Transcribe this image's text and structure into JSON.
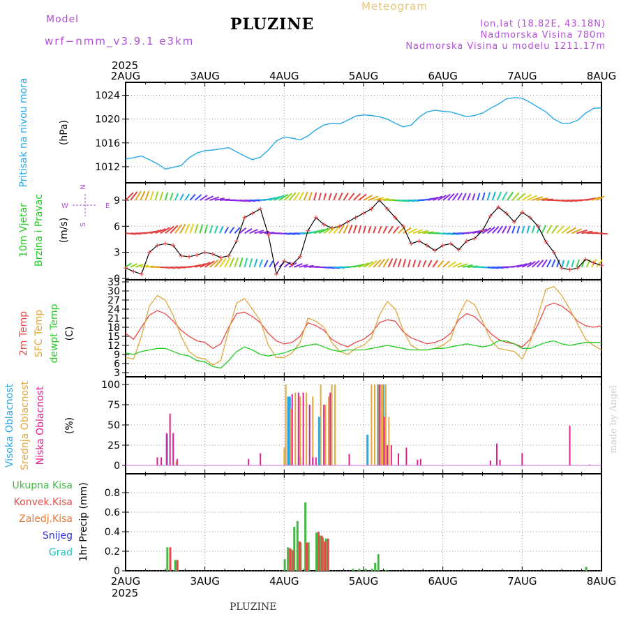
{
  "header": {
    "title": "PLUZINE",
    "meteogram": "Meteogram",
    "model_label": "Model",
    "model_name": "wrf−nmm_v3.9.1  e3km",
    "lonlat": "lon,lat (18.82E, 43.18N)",
    "elevation": "Nadmorska Visina 780m",
    "elevation_model": "Nadmorska Visina u modelu 1211.17m",
    "year_top": "2025",
    "year_bottom": "2025"
  },
  "footer": {
    "station": "PLUZINE",
    "credit": "made by Angel"
  },
  "colors": {
    "pressure": "#29a8e6",
    "wind_label": "#22cc22",
    "temp2m": "#e84a4a",
    "sfc": "#e0a840",
    "dewpt": "#22cc22",
    "high_cloud": "#29a8e6",
    "mid_cloud": "#e0a840",
    "low_cloud": "#e0208c",
    "total_precip": "#44b844",
    "convective": "#e84a4a",
    "frozen": "#e87830",
    "snow": "#3030d0",
    "graupel": "#20c0c0",
    "model_text": "#b050d8"
  },
  "chart_data": [
    {
      "type": "line",
      "panel": "pressure",
      "x_ticks": [
        "2AUG",
        "3AUG",
        "4AUG",
        "5AUG",
        "6AUG",
        "7AUG",
        "8AUG"
      ],
      "ylabel_series": "Pritisak na nivou mora",
      "ylabel_unit": "(hPa)",
      "ylim": [
        1010,
        1025
      ],
      "y_ticks": [
        1012,
        1016,
        1020,
        1024
      ],
      "grid": true,
      "x_days": [
        0,
        0.1,
        0.2,
        0.3,
        0.4,
        0.5,
        0.6,
        0.7,
        0.8,
        0.9,
        1.0,
        1.1,
        1.2,
        1.3,
        1.4,
        1.5,
        1.6,
        1.7,
        1.8,
        1.9,
        2.0,
        2.1,
        2.2,
        2.3,
        2.4,
        2.5,
        2.6,
        2.7,
        2.8,
        2.9,
        3.0,
        3.1,
        3.2,
        3.3,
        3.4,
        3.5,
        3.6,
        3.7,
        3.8,
        3.9,
        4.0,
        4.1,
        4.2,
        4.3,
        4.4,
        4.5,
        4.6,
        4.7,
        4.8,
        4.9,
        5.0,
        5.1,
        5.2,
        5.3,
        5.4,
        5.5,
        5.6,
        5.7,
        5.8,
        5.9,
        6.0
      ],
      "values": [
        1013.3,
        1013.5,
        1013.8,
        1013.2,
        1012.5,
        1011.6,
        1011.9,
        1012.2,
        1013.5,
        1014.3,
        1014.7,
        1014.8,
        1015.0,
        1015.2,
        1014.5,
        1013.8,
        1013.2,
        1013.6,
        1014.8,
        1016.3,
        1017.0,
        1016.8,
        1016.5,
        1017.2,
        1018.2,
        1019.0,
        1019.3,
        1019.2,
        1019.8,
        1020.5,
        1020.7,
        1020.6,
        1020.4,
        1020.0,
        1019.3,
        1018.7,
        1019.0,
        1020.3,
        1021.2,
        1021.5,
        1021.3,
        1021.2,
        1020.8,
        1020.4,
        1020.6,
        1021.0,
        1021.8,
        1022.5,
        1023.4,
        1023.6,
        1023.5,
        1022.8,
        1022.0,
        1021.2,
        1020.0,
        1019.3,
        1019.3,
        1019.8,
        1021.0,
        1021.8,
        1021.9
      ]
    },
    {
      "type": "line",
      "panel": "wind",
      "ylabel_series": [
        "10m Vjetar",
        "Brzina i Pravac"
      ],
      "ylabel_unit": "(m/s)",
      "compass": {
        "n": "N",
        "w": "W",
        "e": "E",
        "s": "S"
      },
      "ylim": [
        0,
        11
      ],
      "y_ticks": [
        0,
        3,
        6,
        9
      ],
      "grid": true,
      "series": [
        {
          "name": "wind speed",
          "x_days": [
            0,
            0.1,
            0.2,
            0.3,
            0.4,
            0.5,
            0.6,
            0.7,
            0.8,
            0.9,
            1.0,
            1.1,
            1.2,
            1.3,
            1.4,
            1.5,
            1.6,
            1.7,
            1.8,
            1.9,
            2.0,
            2.1,
            2.2,
            2.3,
            2.4,
            2.5,
            2.6,
            2.7,
            2.8,
            2.9,
            3.0,
            3.1,
            3.2,
            3.3,
            3.4,
            3.5,
            3.6,
            3.7,
            3.8,
            3.9,
            4.0,
            4.1,
            4.2,
            4.3,
            4.4,
            4.5,
            4.6,
            4.7,
            4.8,
            4.9,
            5.0,
            5.1,
            5.2,
            5.3,
            5.4,
            5.5,
            5.6,
            5.7,
            5.8,
            5.9,
            6.0
          ],
          "values": [
            1.2,
            0.8,
            0.5,
            3.0,
            3.8,
            4.0,
            3.8,
            2.6,
            2.5,
            2.7,
            3.0,
            2.8,
            2.4,
            2.6,
            4.3,
            7.0,
            7.5,
            8.0,
            5.0,
            0.5,
            2.0,
            1.6,
            2.5,
            5.5,
            7.0,
            6.2,
            5.8,
            6.0,
            6.5,
            7.0,
            7.5,
            8.0,
            9.0,
            8.0,
            7.0,
            6.0,
            4.0,
            4.3,
            3.8,
            3.2,
            3.8,
            4.0,
            3.3,
            4.3,
            4.6,
            5.5,
            7.2,
            8.2,
            7.5,
            6.5,
            7.6,
            7.0,
            6.0,
            4.2,
            3.0,
            1.2,
            1.0,
            1.2,
            2.2,
            1.8,
            1.5
          ]
        },
        {
          "name": "wind arrows row 1",
          "level": 1.3,
          "x_days": [
            0,
            0.25,
            0.5,
            0.75,
            1.0,
            1.25,
            1.5,
            1.75,
            2.0,
            2.25,
            2.5,
            2.75,
            3.0,
            3.25,
            3.5,
            3.75,
            4.0,
            4.25,
            4.5,
            4.75,
            5.0,
            5.25,
            5.5,
            5.75,
            6.0
          ]
        },
        {
          "name": "wind arrows row 2",
          "level": 5.2,
          "x_days": [
            0,
            0.25,
            0.5,
            0.75,
            1.0,
            1.25,
            1.5,
            1.75,
            2.0,
            2.25,
            2.5,
            2.75,
            3.0,
            3.25,
            3.5,
            3.75,
            4.0,
            4.25,
            4.5,
            4.75,
            5.0,
            5.25,
            5.5,
            5.75,
            6.0
          ]
        },
        {
          "name": "wind arrows row 3",
          "level": 9.0,
          "x_days": [
            0,
            0.25,
            0.5,
            0.75,
            1.0,
            1.25,
            1.5,
            1.75,
            2.0,
            2.25,
            2.5,
            2.75,
            3.0,
            3.25,
            3.5,
            3.75,
            4.0,
            4.25,
            4.5,
            4.75,
            5.0,
            5.25,
            5.5,
            5.75,
            6.0
          ]
        }
      ]
    },
    {
      "type": "line",
      "panel": "temperature",
      "ylabel_series": [
        "2m Temp",
        "SFC Temp",
        "dewpt Temp"
      ],
      "ylabel_unit": "(C)",
      "ylim": [
        3,
        33
      ],
      "y_ticks": [
        3,
        6,
        9,
        12,
        15,
        18,
        21,
        24,
        27,
        30,
        33
      ],
      "grid": true,
      "x_days": [
        0,
        0.1,
        0.2,
        0.3,
        0.4,
        0.5,
        0.6,
        0.7,
        0.8,
        0.9,
        1.0,
        1.1,
        1.2,
        1.3,
        1.4,
        1.5,
        1.6,
        1.7,
        1.8,
        1.9,
        2.0,
        2.1,
        2.2,
        2.3,
        2.4,
        2.5,
        2.6,
        2.7,
        2.8,
        2.9,
        3.0,
        3.1,
        3.2,
        3.3,
        3.4,
        3.5,
        3.6,
        3.7,
        3.8,
        3.9,
        4.0,
        4.1,
        4.2,
        4.3,
        4.4,
        4.5,
        4.6,
        4.7,
        4.8,
        4.9,
        5.0,
        5.1,
        5.2,
        5.3,
        5.4,
        5.5,
        5.6,
        5.7,
        5.8,
        5.9,
        6.0
      ],
      "series": [
        {
          "name": "2m Temp",
          "values": [
            16.0,
            14.0,
            18.0,
            22.0,
            23.5,
            22.5,
            20.0,
            17.0,
            15.0,
            13.5,
            13.0,
            11.0,
            12.5,
            18.0,
            22.5,
            23.0,
            21.5,
            19.5,
            16.0,
            13.5,
            12.5,
            13.0,
            15.0,
            19.5,
            18.5,
            17.0,
            14.0,
            12.5,
            11.5,
            13.0,
            14.0,
            16.0,
            19.5,
            20.5,
            20.0,
            16.5,
            14.5,
            13.5,
            12.5,
            13.0,
            14.0,
            16.0,
            20.5,
            22.5,
            21.5,
            19.0,
            16.0,
            14.0,
            13.0,
            12.5,
            11.5,
            14.0,
            19.0,
            25.0,
            26.0,
            25.0,
            23.0,
            20.0,
            18.5,
            18.0,
            18.5
          ]
        },
        {
          "name": "SFC Temp",
          "values": [
            8.0,
            7.5,
            15.0,
            25.0,
            28.5,
            27.0,
            22.0,
            15.0,
            10.0,
            8.0,
            7.5,
            5.5,
            7.0,
            17.0,
            26.0,
            27.5,
            24.0,
            20.0,
            12.0,
            8.0,
            8.0,
            9.5,
            13.0,
            21.0,
            20.0,
            18.0,
            13.0,
            10.0,
            9.0,
            11.0,
            12.0,
            14.5,
            22.0,
            26.5,
            24.0,
            17.0,
            12.0,
            10.5,
            10.5,
            11.0,
            12.0,
            14.0,
            22.0,
            27.0,
            25.5,
            20.0,
            14.0,
            11.0,
            10.5,
            10.0,
            7.5,
            13.0,
            22.0,
            30.5,
            31.5,
            28.5,
            24.0,
            19.0,
            14.0,
            12.0,
            10.5
          ]
        },
        {
          "name": "dewpt Temp",
          "values": [
            9.5,
            9.0,
            10.0,
            10.5,
            11.0,
            11.0,
            10.0,
            9.0,
            8.5,
            7.0,
            6.5,
            5.0,
            4.5,
            7.0,
            10.0,
            11.5,
            10.5,
            9.0,
            8.5,
            9.0,
            9.5,
            10.5,
            11.5,
            12.0,
            12.5,
            11.5,
            10.5,
            10.0,
            10.5,
            10.5,
            10.5,
            11.0,
            11.5,
            12.0,
            11.5,
            11.0,
            10.5,
            10.5,
            10.5,
            11.0,
            11.0,
            11.5,
            12.0,
            12.5,
            12.0,
            11.5,
            12.0,
            13.5,
            13.5,
            12.5,
            11.0,
            11.0,
            12.0,
            13.0,
            13.5,
            12.5,
            12.0,
            12.5,
            13.0,
            13.0,
            13.0
          ]
        }
      ]
    },
    {
      "type": "bar",
      "panel": "cloud",
      "ylabel_series": [
        "Visoka Oblacnost",
        "Srednja Oblacnost",
        "Niska Oblacnost"
      ],
      "ylabel_unit": "(%)",
      "ylim": [
        0,
        100
      ],
      "y_ticks": [
        0,
        25,
        50,
        75,
        100
      ],
      "grid": true,
      "series": [
        {
          "name": "Visoka Oblacnost",
          "points": [
            [
              0.52,
              38
            ],
            [
              2.05,
              85
            ],
            [
              2.07,
              85
            ],
            [
              2.2,
              10
            ],
            [
              2.44,
              60
            ],
            [
              3.05,
              38
            ],
            [
              3.18,
              100
            ],
            [
              3.25,
              100
            ]
          ]
        },
        {
          "name": "Srednja Oblacnost",
          "points": [
            [
              0.64,
              5
            ],
            [
              2.0,
              22
            ],
            [
              2.02,
              100
            ],
            [
              2.08,
              70
            ],
            [
              2.14,
              90
            ],
            [
              2.2,
              85
            ],
            [
              2.28,
              90
            ],
            [
              2.36,
              85
            ],
            [
              2.46,
              100
            ],
            [
              2.52,
              75
            ],
            [
              2.56,
              85
            ],
            [
              2.6,
              100
            ],
            [
              2.64,
              100
            ],
            [
              3.1,
              100
            ],
            [
              3.14,
              100
            ],
            [
              3.18,
              100
            ],
            [
              3.22,
              100
            ],
            [
              3.24,
              100
            ],
            [
              3.28,
              100
            ],
            [
              3.32,
              60
            ]
          ]
        },
        {
          "name": "Niska Oblacnost",
          "points": [
            [
              0.4,
              10
            ],
            [
              0.45,
              10
            ],
            [
              0.52,
              40
            ],
            [
              0.56,
              64
            ],
            [
              0.6,
              40
            ],
            [
              0.65,
              8
            ],
            [
              1.55,
              8
            ],
            [
              1.7,
              15
            ],
            [
              2.1,
              88
            ],
            [
              2.18,
              90
            ],
            [
              2.24,
              90
            ],
            [
              2.32,
              75
            ],
            [
              2.36,
              10
            ],
            [
              2.4,
              10
            ],
            [
              2.5,
              75
            ],
            [
              2.58,
              90
            ],
            [
              2.82,
              14
            ],
            [
              3.2,
              100
            ],
            [
              3.26,
              60
            ],
            [
              3.3,
              25
            ],
            [
              3.35,
              25
            ],
            [
              3.44,
              15
            ],
            [
              3.54,
              22
            ],
            [
              3.68,
              7
            ],
            [
              3.72,
              8
            ],
            [
              4.6,
              6
            ],
            [
              4.68,
              27
            ],
            [
              4.72,
              7
            ],
            [
              5.0,
              15
            ],
            [
              5.6,
              49
            ],
            [
              5.85,
              1
            ]
          ]
        }
      ]
    },
    {
      "type": "bar",
      "panel": "precipitation",
      "ylabel_series": [
        "Ukupna Kisa",
        "Konvek.Kisa",
        "Zaledj.Kisa",
        "Snijeg",
        "Grad"
      ],
      "ylabel_unit": "1hr Precip (mm)",
      "x_ticks": [
        "2AUG",
        "3AUG",
        "4AUG",
        "5AUG",
        "6AUG",
        "7AUG",
        "8AUG"
      ],
      "ylim": [
        0,
        0.9
      ],
      "y_ticks": [
        0,
        0.2,
        0.4,
        0.6,
        0.8
      ],
      "grid": true,
      "series": [
        {
          "name": "Ukupna Kisa",
          "points": [
            [
              0.54,
              0.24
            ],
            [
              0.64,
              0.11
            ],
            [
              2.02,
              0.12
            ],
            [
              2.06,
              0.24
            ],
            [
              2.1,
              0.22
            ],
            [
              2.14,
              0.45
            ],
            [
              2.18,
              0.51
            ],
            [
              2.22,
              0.29
            ],
            [
              2.28,
              0.7
            ],
            [
              2.32,
              0.29
            ],
            [
              2.42,
              0.39
            ],
            [
              2.46,
              0.36
            ],
            [
              2.5,
              0.34
            ],
            [
              2.54,
              0.33
            ],
            [
              2.88,
              0.02
            ],
            [
              2.96,
              0.02
            ],
            [
              3.04,
              0.02
            ],
            [
              3.12,
              0.02
            ],
            [
              3.16,
              0.08
            ],
            [
              3.2,
              0.17
            ],
            [
              3.3,
              0.01
            ],
            [
              5.82,
              0.04
            ]
          ]
        },
        {
          "name": "Konvek.Kisa",
          "points": [
            [
              0.55,
              0.24
            ],
            [
              0.64,
              0.11
            ],
            [
              2.06,
              0.23
            ],
            [
              2.1,
              0.21
            ],
            [
              2.18,
              0.3
            ],
            [
              2.27,
              0.29
            ],
            [
              2.42,
              0.4
            ],
            [
              2.46,
              0.36
            ],
            [
              2.5,
              0.3
            ],
            [
              2.54,
              0.33
            ]
          ]
        }
      ]
    }
  ]
}
